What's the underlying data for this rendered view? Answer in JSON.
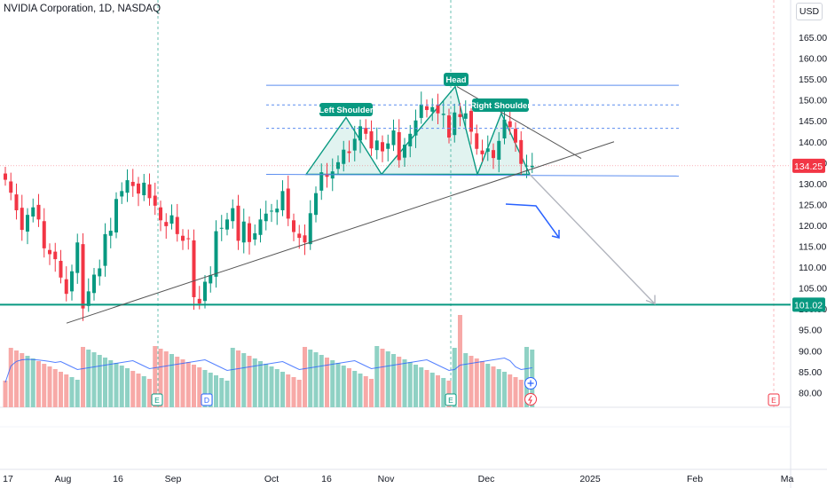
{
  "chart_data": {
    "type": "candlestick",
    "title": "NVIDIA Corporation, 1D, NASDAQ",
    "currency": "USD",
    "y_axis_ticks": [
      "165.00",
      "160.00",
      "155.00",
      "150.00",
      "145.00",
      "140.00",
      "135.00",
      "130.00",
      "125.00",
      "120.00",
      "115.00",
      "110.00",
      "105.00",
      "100.00",
      "95.00",
      "90.00",
      "85.00",
      "80.00"
    ],
    "y_axis_tick_values": [
      165,
      160,
      155,
      150,
      145,
      140,
      135,
      130,
      125,
      120,
      115,
      110,
      105,
      100,
      95,
      90,
      85,
      80
    ],
    "x_axis_labels": [
      "17",
      "Aug",
      "16",
      "Sep",
      "Oct",
      "16",
      "Nov",
      "Dec",
      "2025",
      "Feb",
      "Ma"
    ],
    "price_tags": [
      {
        "label": "134.25",
        "value": 134.25,
        "color": "#f23645"
      },
      {
        "label": "101.02",
        "value": 101.02,
        "color": "#089981"
      }
    ],
    "pattern_labels": {
      "left_shoulder": "Left Shoulder",
      "head": "Head",
      "right_shoulder": "Right Shoulder"
    },
    "levels": {
      "upper_channel": 153.5,
      "neckline": 132.2,
      "dashed_1": 148.8,
      "dashed_2": 143.2,
      "support": 101.02
    },
    "event_markers": [
      {
        "label": "E"
      },
      {
        "label": "D"
      },
      {
        "label": "E"
      },
      {
        "label": "E"
      }
    ],
    "closes": [
      130.9,
      127.8,
      123.6,
      118.9,
      122.5,
      124.3,
      121.4,
      114.5,
      113.1,
      111.9,
      107.5,
      103.6,
      109.0,
      115.9,
      100.1,
      104.2,
      108.2,
      109.7,
      117.9,
      118.7,
      126.3,
      128.2,
      130.8,
      129.4,
      127.6,
      130.2,
      126.5,
      124.7,
      121.2,
      119.8,
      122.4,
      117.9,
      116.3,
      116.8,
      102.8,
      101.3,
      106.5,
      108.1,
      118.6,
      119.4,
      121.4,
      124.1,
      116.3,
      120.9,
      116.0,
      118.1,
      121.4,
      122.8,
      123.5,
      124.0,
      128.2,
      121.6,
      118.4,
      117.0,
      115.9,
      122.9,
      127.7,
      132.7,
      131.6,
      132.9,
      135.1,
      138.1,
      137.3,
      140.7,
      143.7,
      141.9,
      138.4,
      140.3,
      137.7,
      139.6,
      142.7,
      135.6,
      139.3,
      141.9,
      145.1,
      148.9,
      147.6,
      148.3,
      146.8,
      146.7,
      141.0,
      147.0,
      145.9,
      146.8,
      142.4,
      138.3,
      137.0,
      138.4,
      136.1,
      140.2,
      145.3,
      143.5,
      139.8,
      134.7,
      134.3,
      134.25
    ],
    "volume_ticks_visible": false
  }
}
